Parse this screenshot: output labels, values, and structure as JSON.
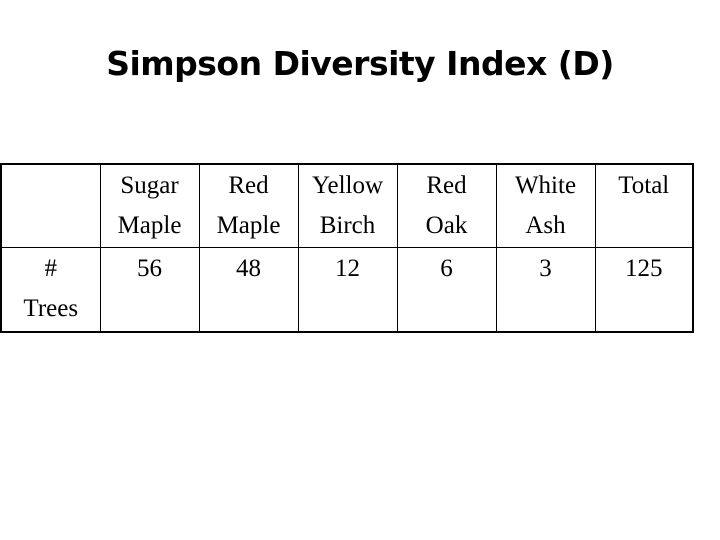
{
  "title": "Simpson Diversity Index (D)",
  "table": {
    "header": [
      [
        "",
        ""
      ],
      [
        "Sugar",
        "Maple"
      ],
      [
        "Red",
        "Maple"
      ],
      [
        "Yellow",
        "Birch"
      ],
      [
        "Red",
        "Oak"
      ],
      [
        "White",
        "Ash"
      ],
      [
        "Total",
        ""
      ]
    ],
    "row_label": [
      "#",
      "Trees"
    ],
    "values": [
      "56",
      "48",
      "12",
      "6",
      "3",
      "125"
    ]
  }
}
